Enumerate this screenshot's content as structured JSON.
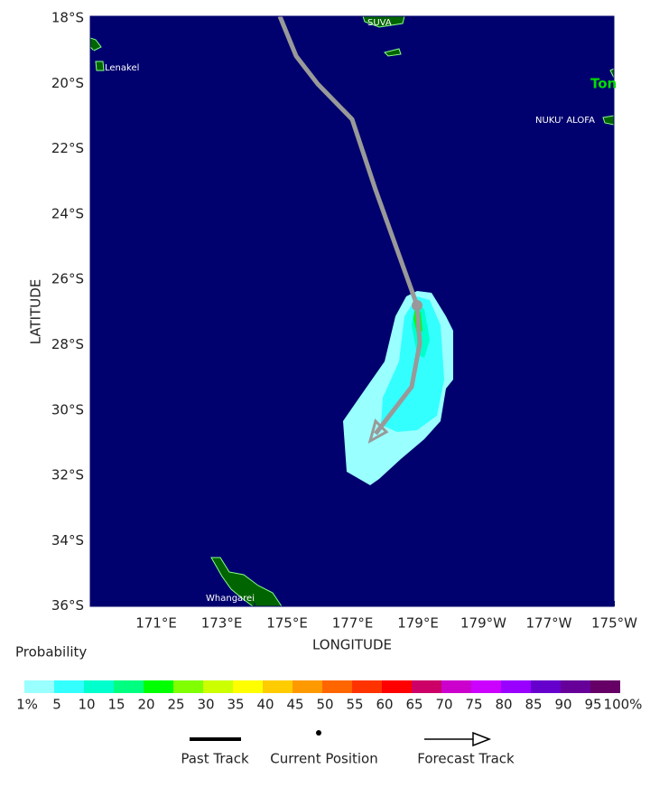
{
  "map": {
    "lat_labels": [
      "18°S",
      "20°S",
      "22°S",
      "24°S",
      "26°S",
      "28°S",
      "30°S",
      "32°S",
      "34°S",
      "36°S"
    ],
    "lon_labels": [
      "171°E",
      "173°E",
      "175°E",
      "177°E",
      "179°E",
      "179°W",
      "177°W",
      "175°W"
    ],
    "x_axis_label": "LONGITUDE",
    "y_axis_label": "LATITUDE",
    "places": [
      "SUVA",
      "Lenakel",
      "Ton",
      "NUKU' ALOFA",
      "Whangarei"
    ]
  },
  "legend": {
    "title": "Probability",
    "colors": [
      "#99ffff",
      "#33ffff",
      "#00ffcc",
      "#00ff80",
      "#00ff00",
      "#80ff00",
      "#ccff00",
      "#ffff00",
      "#ffcc00",
      "#ff9900",
      "#ff6600",
      "#ff3300",
      "#ff0000",
      "#cc0066",
      "#cc00cc",
      "#cc00ff",
      "#9900ff",
      "#6600cc",
      "#660099",
      "#660066"
    ],
    "labels": [
      "1%",
      "5",
      "10",
      "15",
      "20",
      "25",
      "30",
      "35",
      "40",
      "45",
      "50",
      "55",
      "60",
      "65",
      "70",
      "75",
      "80",
      "85",
      "90",
      "95",
      "100%"
    ],
    "track_items": [
      "Past Track",
      "Current Position",
      "Forecast Track"
    ]
  }
}
